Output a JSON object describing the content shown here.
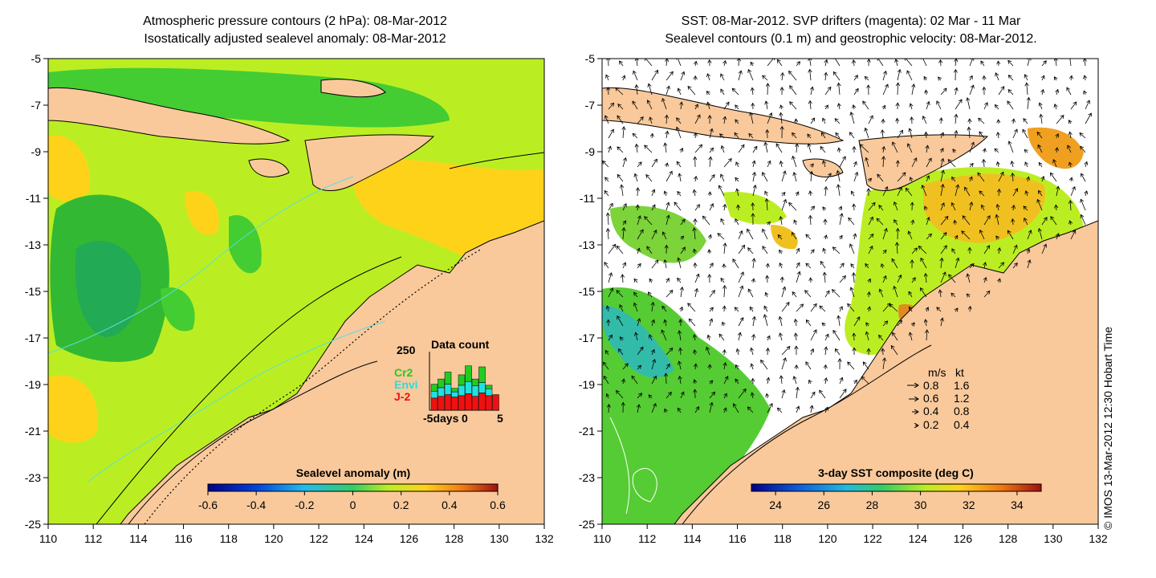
{
  "left_panel": {
    "title_line1": "Atmospheric pressure contours (2 hPa): 08-Mar-2012",
    "title_line2": "Isostatically adjusted sealevel anomaly: 08-Mar-2012",
    "colorbar": {
      "label": "Sealevel anomaly (m)",
      "ticks": [
        "-0.6",
        "-0.4",
        "-0.2",
        "0",
        "0.2",
        "0.4",
        "0.6"
      ],
      "min": -0.6,
      "max": 0.6
    },
    "inset": {
      "title": "Data count",
      "ymax_label": "250",
      "legend": [
        "Cr2",
        "Envi",
        "J-2"
      ],
      "legend_colors": [
        "#22cc22",
        "#22e0e0",
        "#ee1111"
      ],
      "x_labels": [
        "-5days",
        "0",
        "5"
      ],
      "bars": [
        {
          "j2": 0.35,
          "envi": 0.2,
          "cr2": 0.2
        },
        {
          "j2": 0.4,
          "envi": 0.25,
          "cr2": 0.25
        },
        {
          "j2": 0.45,
          "envi": 0.3,
          "cr2": 0.35
        },
        {
          "j2": 0.38,
          "envi": 0.15,
          "cr2": 0.1
        },
        {
          "j2": 0.42,
          "envi": 0.3,
          "cr2": 0.3
        },
        {
          "j2": 0.48,
          "envi": 0.35,
          "cr2": 0.45
        },
        {
          "j2": 0.4,
          "envi": 0.3,
          "cr2": 0.2
        },
        {
          "j2": 0.5,
          "envi": 0.3,
          "cr2": 0.45
        },
        {
          "j2": 0.42,
          "envi": 0.2,
          "cr2": 0.1
        },
        {
          "j2": 0.45,
          "envi": 0.0,
          "cr2": 0.0
        }
      ]
    }
  },
  "right_panel": {
    "title_line1": "SST: 08-Mar-2012. SVP drifters (magenta): 02 Mar - 11 Mar",
    "title_line2": "Sealevel contours (0.1 m) and geostrophic velocity: 08-Mar-2012.",
    "colorbar": {
      "label": "3-day SST composite (deg C)",
      "ticks": [
        "24",
        "26",
        "28",
        "30",
        "32",
        "34"
      ],
      "min": 23,
      "max": 35
    },
    "velocity_legend": {
      "header_ms": "m/s",
      "header_kt": "kt",
      "rows": [
        {
          "ms": "0.8",
          "kt": "1.6"
        },
        {
          "ms": "0.6",
          "kt": "1.2"
        },
        {
          "ms": "0.4",
          "kt": "0.8"
        },
        {
          "ms": "0.2",
          "kt": "0.4"
        }
      ]
    }
  },
  "axes": {
    "y_ticks": [
      "-5",
      "-7",
      "-9",
      "-11",
      "-13",
      "-15",
      "-17",
      "-19",
      "-21",
      "-23",
      "-25"
    ],
    "x_ticks": [
      "110",
      "112",
      "114",
      "116",
      "118",
      "120",
      "122",
      "124",
      "126",
      "128",
      "130",
      "132"
    ]
  },
  "credit": "© IMOS 13-Mar-2012 12:30 Hobart Time",
  "colors": {
    "land": "#f9c99b",
    "sla_green": "#44cc33",
    "sla_yellowgreen": "#bbee22",
    "sla_yellow": "#ffd21a",
    "sst_green": "#55cc33",
    "sst_orange": "#f0a020",
    "contour_cyan": "#55e0e0"
  }
}
